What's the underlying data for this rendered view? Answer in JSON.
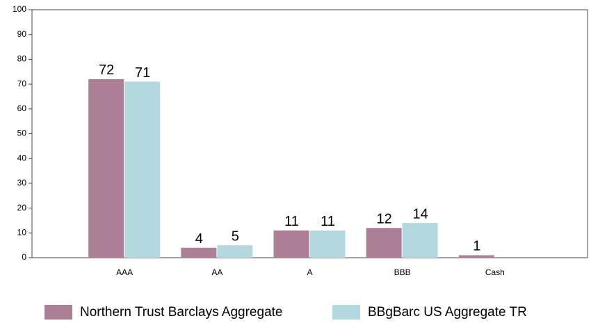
{
  "chart_data": {
    "type": "bar",
    "categories": [
      "AAA",
      "AA",
      "A",
      "BBB",
      "Cash"
    ],
    "series": [
      {
        "name": "Northern Trust Barclays Aggregate",
        "color": "#ad7f96",
        "values": [
          72,
          4,
          11,
          12,
          1
        ]
      },
      {
        "name": "BBgBarc US Aggregate TR",
        "color": "#b3d9df",
        "values": [
          71,
          5,
          11,
          14,
          null
        ]
      }
    ],
    "ylim": [
      0,
      100
    ],
    "yticks": [
      0,
      10,
      20,
      30,
      40,
      50,
      60,
      70,
      80,
      90,
      100
    ],
    "grid": false,
    "legend": "bottom"
  }
}
